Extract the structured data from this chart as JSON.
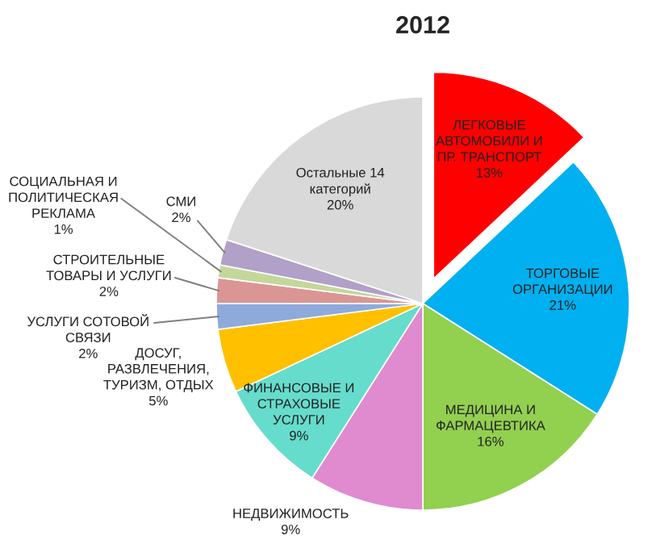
{
  "chart_data": {
    "type": "pie",
    "title": "2012",
    "categories": [
      "ЛЕГКОВЫЕ\nАВТОМОБИЛИ И\nПР. ТРАНСПОРТ",
      "ТОРГОВЫЕ\nОРГАНИЗАЦИИ",
      "МЕДИЦИНА И\nФАРМАЦЕВТИКА",
      "НЕДВИЖИМОСТЬ",
      "ФИНАНСОВЫЕ И\nСТРАХОВЫЕ\nУСЛУГИ",
      "ДОСУГ,\nРАЗВЛЕЧЕНИЯ,\nТУРИЗМ, ОТДЫХ",
      "УСЛУГИ СОТОВОЙ\nСВЯЗИ",
      "СТРОИТЕЛЬНЫЕ\nТОВАРЫ И УСЛУГИ",
      "СОЦИАЛЬНАЯ И\nПОЛИТИЧЕСКАЯ\nРЕКЛАМА",
      "СМИ",
      "Остальные 14\nкатегорий"
    ],
    "values": [
      13,
      21,
      16,
      9,
      9,
      5,
      2,
      2,
      1,
      2,
      20
    ],
    "value_labels": [
      "13%",
      "21%",
      "16%",
      "9%",
      "9%",
      "5%",
      "2%",
      "2%",
      "1%",
      "2%",
      "20%"
    ],
    "colors": [
      "#ff0000",
      "#00b0f0",
      "#92d050",
      "#e08ad0",
      "#66dccc",
      "#ffc000",
      "#8eaadb",
      "#da9694",
      "#c4d79b",
      "#b1a0c7",
      "#d9d9d9"
    ]
  }
}
